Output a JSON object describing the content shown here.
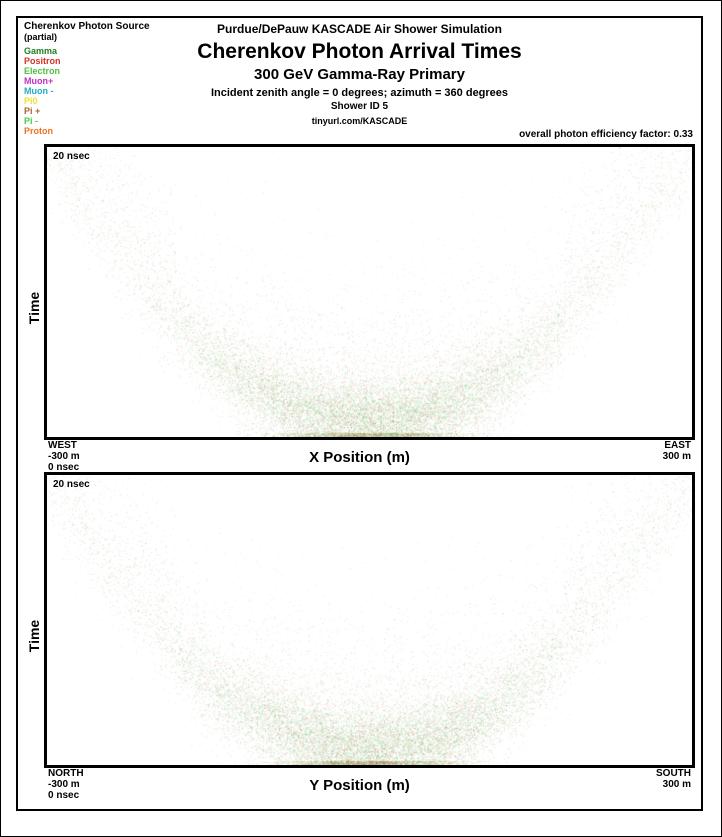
{
  "legend": {
    "title": "Cherenkov Photon Source",
    "subtitle": "(partial)",
    "items": [
      {
        "label": "Gamma",
        "color": "#208020"
      },
      {
        "label": "Positron",
        "color": "#d93020"
      },
      {
        "label": "Electron",
        "color": "#50c040"
      },
      {
        "label": "Muon+",
        "color": "#c030c0"
      },
      {
        "label": "Muon -",
        "color": "#20b0c0"
      },
      {
        "label": "Pi0",
        "color": "#f0e030"
      },
      {
        "label": "Pi +",
        "color": "#b06030"
      },
      {
        "label": "Pi -",
        "color": "#40d040"
      },
      {
        "label": "Proton",
        "color": "#f07020"
      }
    ]
  },
  "header": {
    "supertitle": "Purdue/DePauw KASCADE Air Shower Simulation",
    "title": "Cherenkov Photon Arrival Times",
    "subtitle": "300 GeV Gamma-Ray Primary",
    "incidence": "Incident zenith angle =  0 degrees;  azimuth =  360 degrees",
    "shower_id": "Shower ID 5",
    "url": "tinyurl.com/KASCADE",
    "efficiency": "overall photon efficiency factor: 0.33"
  },
  "panels": [
    {
      "axis_x_label": "X Position (m)",
      "axis_y_label": "Time",
      "top_left_inside": "20 nsec",
      "bottom_left_dir": "WEST",
      "bottom_left_val": "-300 m",
      "bottom_left_time": "0 nsec",
      "bottom_right_dir": "EAST",
      "bottom_right_val": "300 m"
    },
    {
      "axis_x_label": "Y Position (m)",
      "axis_y_label": "Time",
      "top_left_inside": "20 nsec",
      "bottom_left_dir": "NORTH",
      "bottom_left_val": "-300 m",
      "bottom_left_time": "0 nsec",
      "bottom_right_dir": "SOUTH",
      "bottom_right_val": "300 m"
    }
  ],
  "scatter": {
    "xlim": [
      -300,
      300
    ],
    "ylim": [
      0,
      20
    ],
    "series": [
      {
        "color": "#50c040",
        "n": 9000,
        "alpha": 0.35,
        "size": 0.7,
        "spread_t": 2.6,
        "spread_x": 18
      },
      {
        "color": "#208020",
        "n": 5000,
        "alpha": 0.35,
        "size": 0.7,
        "spread_t": 2.2,
        "spread_x": 15
      },
      {
        "color": "#d93020",
        "n": 4500,
        "alpha": 0.35,
        "size": 0.7,
        "spread_t": 3.0,
        "spread_x": 22
      },
      {
        "color": "#f07020",
        "n": 1200,
        "alpha": 0.3,
        "size": 0.7,
        "spread_t": 3.5,
        "spread_x": 28
      },
      {
        "color": "#c030c0",
        "n": 300,
        "alpha": 0.3,
        "size": 0.7,
        "spread_t": 2.0,
        "spread_x": 12
      }
    ],
    "curve": {
      "a_per_m2": 0.00021,
      "t0": 1.0
    }
  }
}
